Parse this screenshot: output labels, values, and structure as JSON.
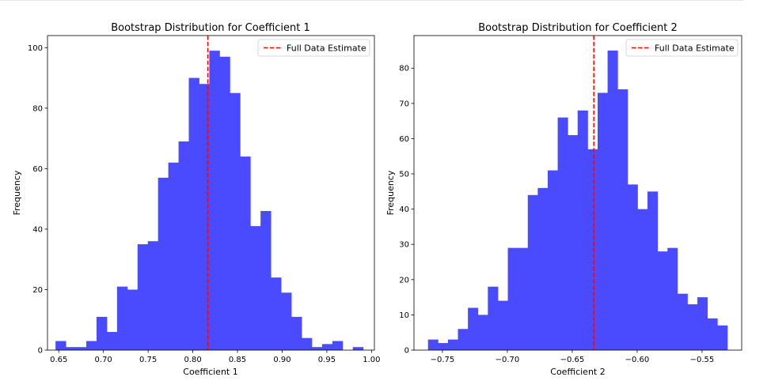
{
  "colors": {
    "bar": "#4a4aff",
    "estimate_line": "#ff0000"
  },
  "chart_data": [
    {
      "type": "histogram",
      "title": "Bootstrap Distribution for Coefficient 1",
      "xlabel": "Coefficient 1",
      "ylabel": "Frequency",
      "xlim": [
        0.6374,
        1.0032
      ],
      "ylim": [
        0,
        104
      ],
      "xticks": [
        0.65,
        0.7,
        0.75,
        0.8,
        0.85,
        0.9,
        0.95,
        1.0
      ],
      "xtick_labels": [
        "0.65",
        "0.70",
        "0.75",
        "0.80",
        "0.85",
        "0.90",
        "0.95",
        "1.00"
      ],
      "yticks": [
        0,
        20,
        40,
        60,
        80,
        100
      ],
      "ytick_labels": [
        "0",
        "20",
        "40",
        "60",
        "80",
        "100"
      ],
      "bin_start": 0.6464,
      "bin_width": 0.011471,
      "counts": [
        3,
        1,
        1,
        3,
        11,
        6,
        21,
        20,
        35,
        36,
        57,
        62,
        69,
        90,
        88,
        99,
        97,
        85,
        64,
        41,
        46,
        24,
        19,
        11,
        4,
        1,
        2,
        3,
        0,
        1
      ],
      "estimate": 0.8168,
      "legend": {
        "label": "Full Data Estimate",
        "loc": "upper right"
      }
    },
    {
      "type": "histogram",
      "title": "Bootstrap Distribution for Coefficient 2",
      "xlabel": "Coefficient 2",
      "ylabel": "Frequency",
      "xlim": [
        -0.7719,
        -0.5195
      ],
      "ylim": [
        0,
        89.25
      ],
      "xticks": [
        -0.75,
        -0.7,
        -0.65,
        -0.6,
        -0.55
      ],
      "xtick_labels": [
        "−0.75",
        "−0.70",
        "−0.65",
        "−0.60",
        "−0.55"
      ],
      "yticks": [
        0,
        10,
        20,
        30,
        40,
        50,
        60,
        70,
        80
      ],
      "ytick_labels": [
        "0",
        "10",
        "20",
        "30",
        "40",
        "50",
        "60",
        "70",
        "80"
      ],
      "bin_start": -0.7611,
      "bin_width": 0.007685,
      "counts": [
        3,
        2,
        3,
        6,
        12,
        10,
        18,
        14,
        29,
        29,
        44,
        46,
        51,
        66,
        61,
        68,
        57,
        73,
        85,
        74,
        47,
        40,
        45,
        28,
        29,
        16,
        13,
        15,
        9,
        7
      ],
      "estimate": -0.6334,
      "legend": {
        "label": "Full Data Estimate",
        "loc": "upper right"
      }
    }
  ]
}
